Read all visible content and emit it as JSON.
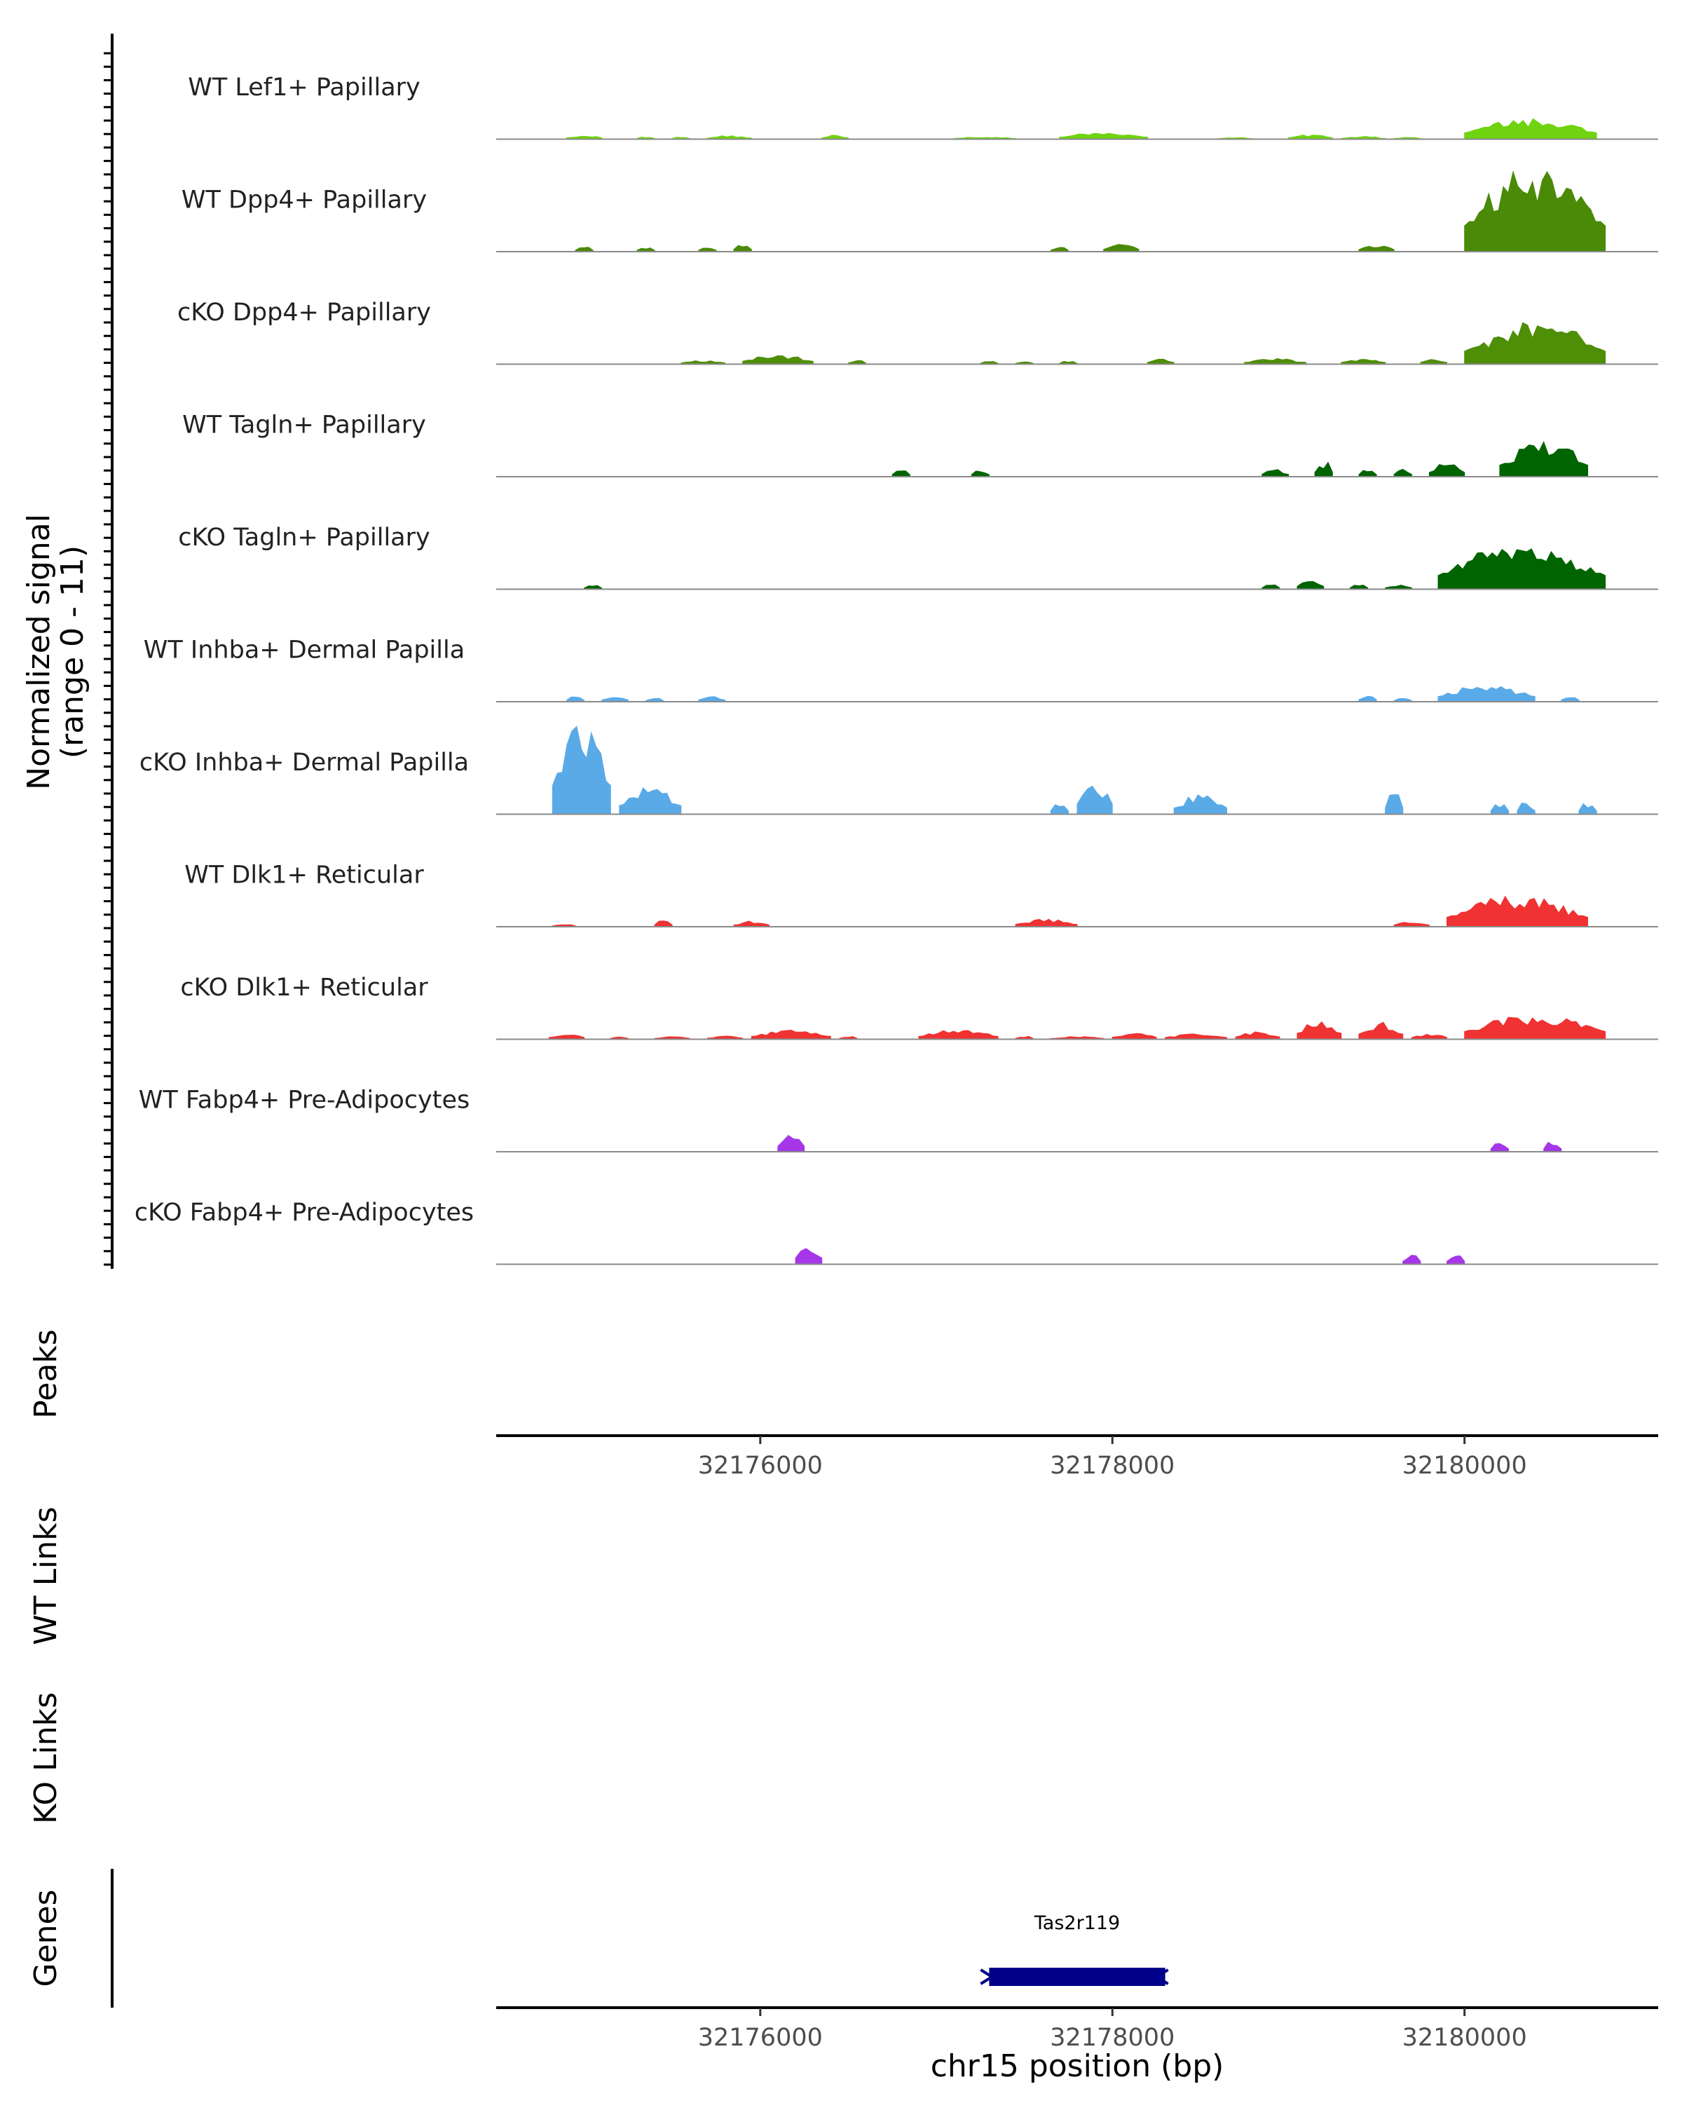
{
  "chart_data": {
    "type": "area",
    "title": "",
    "signal_axis_label_line1": "Normalized signal",
    "signal_axis_label_line2": "(range 0 - 11)",
    "ylim": [
      0,
      11
    ],
    "xlim": [
      32174500,
      32181100
    ],
    "xlabel": "chr15 position (bp)",
    "x_ticks": [
      32176000,
      32178000,
      32180000
    ],
    "x_tick_labels": [
      "32176000",
      "32178000",
      "32180000"
    ],
    "section_labels": {
      "peaks": "Peaks",
      "wt_links": "WT Links",
      "ko_links": "KO Links",
      "genes": "Genes"
    },
    "genes": [
      {
        "name": "Tas2r119",
        "start": 32177300,
        "end": 32178300,
        "strand": "-",
        "color": "#00008b"
      }
    ],
    "tracks": [
      {
        "name": "WT Lef1+ Papillary",
        "color": "#6fd40f",
        "peaks": [
          [
            32174900,
            32175100,
            0.45
          ],
          [
            32175300,
            32175400,
            0.25
          ],
          [
            32175500,
            32175600,
            0.25
          ],
          [
            32175700,
            32175950,
            0.4
          ],
          [
            32176350,
            32176500,
            0.45
          ],
          [
            32177100,
            32177450,
            0.25
          ],
          [
            32177700,
            32178200,
            0.7
          ],
          [
            32178600,
            32178800,
            0.2
          ],
          [
            32179000,
            32179250,
            0.5
          ],
          [
            32179300,
            32179550,
            0.3
          ],
          [
            32179600,
            32179750,
            0.25
          ],
          [
            32180000,
            32180750,
            2.2
          ]
        ]
      },
      {
        "name": "WT Dpp4+ Papillary",
        "color": "#4a8a06",
        "peaks": [
          [
            32174950,
            32175050,
            0.5
          ],
          [
            32175300,
            32175400,
            0.5
          ],
          [
            32175650,
            32175750,
            0.5
          ],
          [
            32175850,
            32175950,
            0.8
          ],
          [
            32177650,
            32177750,
            0.5
          ],
          [
            32177950,
            32178150,
            0.8
          ],
          [
            32179400,
            32179600,
            0.7
          ],
          [
            32180000,
            32180800,
            9.0
          ]
        ]
      },
      {
        "name": "cKO Dpp4+ Papillary",
        "color": "#4f8e07",
        "peaks": [
          [
            32175550,
            32175800,
            0.4
          ],
          [
            32175900,
            32176300,
            1.0
          ],
          [
            32176500,
            32176600,
            0.4
          ],
          [
            32177250,
            32177350,
            0.3
          ],
          [
            32177450,
            32177550,
            0.3
          ],
          [
            32177700,
            32177800,
            0.3
          ],
          [
            32178200,
            32178350,
            0.6
          ],
          [
            32178750,
            32179100,
            0.6
          ],
          [
            32179300,
            32179550,
            0.6
          ],
          [
            32179750,
            32179900,
            0.6
          ],
          [
            32180000,
            32180800,
            4.5
          ]
        ]
      },
      {
        "name": "WT Tagln+ Papillary",
        "color": "#006400",
        "peaks": [
          [
            32176750,
            32176850,
            0.7
          ],
          [
            32177200,
            32177300,
            0.7
          ],
          [
            32178850,
            32179000,
            0.8
          ],
          [
            32179150,
            32179250,
            1.5
          ],
          [
            32179400,
            32179500,
            0.7
          ],
          [
            32179600,
            32179700,
            0.8
          ],
          [
            32179800,
            32180000,
            1.5
          ],
          [
            32180200,
            32180700,
            4.0
          ]
        ]
      },
      {
        "name": "cKO Tagln+ Papillary",
        "color": "#006400",
        "peaks": [
          [
            32175000,
            32175100,
            0.4
          ],
          [
            32178850,
            32178950,
            0.5
          ],
          [
            32179050,
            32179200,
            1.0
          ],
          [
            32179350,
            32179450,
            0.5
          ],
          [
            32179550,
            32179700,
            0.5
          ],
          [
            32179850,
            32180800,
            4.8
          ]
        ]
      },
      {
        "name": "WT Inhba+ Dermal Papilla",
        "color": "#5aaae8",
        "peaks": [
          [
            32174900,
            32175000,
            0.5
          ],
          [
            32175100,
            32175250,
            0.6
          ],
          [
            32175350,
            32175450,
            0.4
          ],
          [
            32175650,
            32175800,
            0.6
          ],
          [
            32179400,
            32179500,
            0.7
          ],
          [
            32179600,
            32179700,
            0.4
          ],
          [
            32179850,
            32180400,
            1.8
          ],
          [
            32180550,
            32180650,
            0.6
          ]
        ]
      },
      {
        "name": "cKO Inhba+ Dermal Papilla",
        "color": "#5aaae8",
        "peaks": [
          [
            32174820,
            32175150,
            10.0
          ],
          [
            32175200,
            32175550,
            3.0
          ],
          [
            32177650,
            32177750,
            1.2
          ],
          [
            32177800,
            32178000,
            3.5
          ],
          [
            32178350,
            32178650,
            2.2
          ],
          [
            32179550,
            32179650,
            2.2
          ],
          [
            32180150,
            32180250,
            1.2
          ],
          [
            32180300,
            32180400,
            1.2
          ],
          [
            32180650,
            32180750,
            1.2
          ]
        ]
      },
      {
        "name": "WT Dlk1+ Reticular",
        "color": "#f03232",
        "peaks": [
          [
            32174820,
            32174950,
            0.3
          ],
          [
            32175400,
            32175500,
            0.6
          ],
          [
            32175850,
            32176050,
            0.6
          ],
          [
            32177450,
            32177800,
            0.8
          ],
          [
            32179600,
            32179800,
            0.6
          ],
          [
            32179900,
            32180700,
            3.3
          ]
        ]
      },
      {
        "name": "cKO Dlk1+ Reticular",
        "color": "#f03232",
        "peaks": [
          [
            32174800,
            32175000,
            0.6
          ],
          [
            32175150,
            32175250,
            0.3
          ],
          [
            32175400,
            32175600,
            0.3
          ],
          [
            32175700,
            32175900,
            0.4
          ],
          [
            32175950,
            32176400,
            1.0
          ],
          [
            32176450,
            32176550,
            0.3
          ],
          [
            32176900,
            32177350,
            1.0
          ],
          [
            32177450,
            32177550,
            0.3
          ],
          [
            32177650,
            32177950,
            0.3
          ],
          [
            32178000,
            32178250,
            0.7
          ],
          [
            32178300,
            32178650,
            0.6
          ],
          [
            32178700,
            32178950,
            0.8
          ],
          [
            32179050,
            32179300,
            2.1
          ],
          [
            32179400,
            32179650,
            1.8
          ],
          [
            32179700,
            32179900,
            0.6
          ],
          [
            32180000,
            32180800,
            2.7
          ]
        ]
      },
      {
        "name": "WT Fabp4+ Pre-Adipocytes",
        "color": "#a637e8",
        "peaks": [
          [
            32176100,
            32176250,
            1.9
          ],
          [
            32180150,
            32180250,
            1.0
          ],
          [
            32180450,
            32180550,
            1.0
          ]
        ]
      },
      {
        "name": "cKO Fabp4+ Pre-Adipocytes",
        "color": "#a637e8",
        "peaks": [
          [
            32176200,
            32176350,
            2.2
          ],
          [
            32179650,
            32179750,
            1.0
          ],
          [
            32179900,
            32180000,
            1.0
          ]
        ]
      }
    ]
  }
}
